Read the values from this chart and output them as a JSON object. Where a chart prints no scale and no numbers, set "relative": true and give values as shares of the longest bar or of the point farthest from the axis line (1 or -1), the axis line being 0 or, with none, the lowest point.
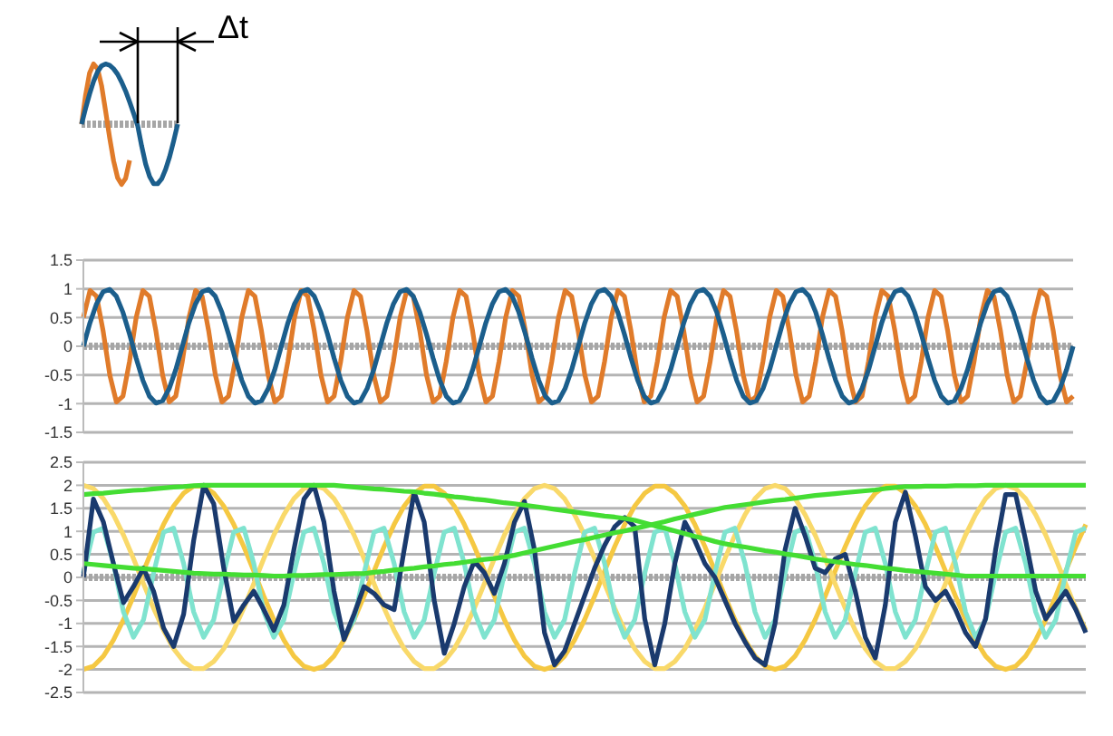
{
  "chart_data": [
    {
      "type": "line",
      "relative": true,
      "annotations": [
        "Δt"
      ],
      "ref_lines": [
        {
          "axis": "y",
          "value": 0,
          "color": "#a6a6a6",
          "line_style": "dotted"
        }
      ],
      "tick_labels": false,
      "marker": "none",
      "categories": [
        null,
        null,
        null,
        null,
        null,
        null,
        null,
        null,
        null,
        null,
        null,
        null,
        null,
        null,
        null,
        null,
        null,
        null,
        null,
        null,
        null,
        null,
        null,
        null,
        null
      ],
      "series": [
        {
          "color": "#e07b2a",
          "values": [
            0,
            0.48,
            0.85,
            1,
            0.92,
            0.64,
            0.22,
            -0.22,
            -0.61,
            -0.89,
            -1,
            -0.9,
            -0.6,
            null,
            null,
            null,
            null,
            null,
            null,
            null,
            null,
            null,
            null,
            null,
            null
          ]
        },
        {
          "color": "#1b5e8c",
          "values": [
            0,
            0.26,
            0.5,
            0.71,
            0.87,
            0.97,
            1,
            0.98,
            0.92,
            0.83,
            0.7,
            0.55,
            0.37,
            0.18,
            -0.02,
            -0.36,
            -0.66,
            -0.87,
            -0.99,
            -0.99,
            -0.91,
            -0.75,
            -0.54,
            -0.28,
            0
          ]
        }
      ]
    },
    {
      "type": "line",
      "grid": "y",
      "tick_labels": "y",
      "marker": "none",
      "ref_lines": [
        {
          "axis": "y",
          "value": 0,
          "color": "#a6a6a6",
          "line_style": "dotted"
        }
      ],
      "ylim": [
        -1.5,
        1.5
      ],
      "yticks": [
        -1.5,
        -1,
        -0.5,
        0,
        0.5,
        1,
        1.5
      ],
      "categories": [
        null,
        null,
        null,
        null,
        null,
        null,
        null,
        null,
        null,
        null,
        null,
        null,
        null,
        null,
        null,
        null,
        null,
        null,
        null,
        null,
        null,
        null,
        null,
        null,
        null,
        null,
        null,
        null,
        null,
        null,
        null,
        null,
        null,
        null,
        null,
        null,
        null,
        null,
        null,
        null,
        null,
        null,
        null,
        null,
        null,
        null,
        null,
        null,
        null,
        null,
        null,
        null,
        null,
        null,
        null,
        null,
        null,
        null,
        null,
        null,
        null,
        null,
        null,
        null,
        null,
        null,
        null,
        null,
        null,
        null,
        null,
        null,
        null,
        null,
        null,
        null,
        null,
        null,
        null,
        null,
        null,
        null,
        null,
        null,
        null,
        null,
        null,
        null,
        null,
        null,
        null,
        null,
        null,
        null,
        null,
        null,
        null,
        null,
        null,
        null,
        null,
        null,
        null,
        null,
        null,
        null,
        null,
        null,
        null,
        null,
        null,
        null,
        null,
        null,
        null,
        null,
        null,
        null,
        null,
        null,
        null,
        null,
        null,
        null,
        null,
        null,
        null,
        null,
        null,
        null,
        null,
        null,
        null,
        null,
        null,
        null,
        null,
        null,
        null,
        null,
        null,
        null,
        null,
        null,
        null,
        null,
        null,
        null,
        null,
        null,
        null
      ],
      "series": [
        {
          "color": "#e07b2a",
          "values": [
            0.5,
            0.97,
            0.87,
            0.26,
            -0.5,
            -0.97,
            -0.87,
            -0.26,
            0.5,
            0.97,
            0.87,
            0.26,
            -0.5,
            -0.97,
            -0.87,
            -0.26,
            0.5,
            0.97,
            0.87,
            0.26,
            -0.5,
            -0.97,
            -0.87,
            -0.26,
            0.5,
            0.97,
            0.87,
            0.26,
            -0.5,
            -0.97,
            -0.87,
            -0.26,
            0.5,
            0.97,
            0.87,
            0.26,
            -0.5,
            -0.97,
            -0.87,
            -0.26,
            0.5,
            0.97,
            0.87,
            0.26,
            -0.5,
            -0.97,
            -0.87,
            -0.26,
            0.5,
            0.97,
            0.87,
            0.26,
            -0.5,
            -0.97,
            -0.87,
            -0.26,
            0.5,
            0.97,
            0.87,
            0.26,
            -0.5,
            -0.97,
            -0.87,
            -0.26,
            0.5,
            0.97,
            0.87,
            0.26,
            -0.5,
            -0.97,
            -0.87,
            -0.26,
            0.5,
            0.97,
            0.87,
            0.26,
            -0.5,
            -0.97,
            -0.87,
            -0.26,
            0.5,
            0.97,
            0.87,
            0.26,
            -0.5,
            -0.97,
            -0.87,
            -0.26,
            0.5,
            0.97,
            0.87,
            0.26,
            -0.5,
            -0.97,
            -0.87,
            -0.26,
            0.5,
            0.97,
            0.87,
            0.26,
            -0.5,
            -0.97,
            -0.87,
            -0.26,
            0.5,
            0.97,
            0.87,
            0.26,
            -0.5,
            -0.97,
            -0.87,
            -0.26,
            0.5,
            0.97,
            0.87,
            0.26,
            -0.5,
            -0.97,
            -0.87,
            -0.26,
            0.5,
            0.97,
            0.87,
            0.26,
            -0.5,
            -0.97,
            -0.87,
            -0.26,
            0.5,
            0.97,
            0.87,
            0.26,
            -0.5,
            -0.97,
            -0.87,
            -0.26,
            0.5,
            0.97,
            0.87,
            0.26,
            -0.5,
            -0.97,
            -0.87,
            -0.26,
            0.5,
            0.97,
            0.87,
            0.26,
            -0.5,
            -0.97,
            -0.87
          ]
        },
        {
          "color": "#1b5e8c",
          "values": [
            0,
            0.41,
            0.74,
            0.95,
            0.99,
            0.87,
            0.59,
            0.21,
            -0.21,
            -0.59,
            -0.87,
            -0.99,
            -0.95,
            -0.74,
            -0.41,
            0,
            0.41,
            0.74,
            0.95,
            0.99,
            0.87,
            0.59,
            0.21,
            -0.21,
            -0.59,
            -0.87,
            -0.99,
            -0.95,
            -0.74,
            -0.41,
            0,
            0.41,
            0.74,
            0.95,
            0.99,
            0.87,
            0.59,
            0.21,
            -0.21,
            -0.59,
            -0.87,
            -0.99,
            -0.95,
            -0.74,
            -0.41,
            0,
            0.41,
            0.74,
            0.95,
            0.99,
            0.87,
            0.59,
            0.21,
            -0.21,
            -0.59,
            -0.87,
            -0.99,
            -0.95,
            -0.74,
            -0.41,
            0,
            0.41,
            0.74,
            0.95,
            0.99,
            0.87,
            0.59,
            0.21,
            -0.21,
            -0.59,
            -0.87,
            -0.99,
            -0.95,
            -0.74,
            -0.41,
            0,
            0.41,
            0.74,
            0.95,
            0.99,
            0.87,
            0.59,
            0.21,
            -0.21,
            -0.59,
            -0.87,
            -0.99,
            -0.95,
            -0.74,
            -0.41,
            0,
            0.41,
            0.74,
            0.95,
            0.99,
            0.87,
            0.59,
            0.21,
            -0.21,
            -0.59,
            -0.87,
            -0.99,
            -0.95,
            -0.74,
            -0.41,
            0,
            0.41,
            0.74,
            0.95,
            0.99,
            0.87,
            0.59,
            0.21,
            -0.21,
            -0.59,
            -0.87,
            -0.99,
            -0.95,
            -0.74,
            -0.41,
            0,
            0.41,
            0.74,
            0.95,
            0.99,
            0.87,
            0.59,
            0.21,
            -0.21,
            -0.59,
            -0.87,
            -0.99,
            -0.95,
            -0.74,
            -0.41,
            0,
            0.41,
            0.74,
            0.95,
            0.99,
            0.87,
            0.59,
            0.21,
            -0.21,
            -0.59,
            -0.87,
            -0.99,
            -0.95,
            -0.74,
            -0.41,
            0
          ]
        }
      ]
    },
    {
      "type": "line",
      "grid": "y",
      "tick_labels": "y",
      "marker": "none",
      "ref_lines": [
        {
          "axis": "y",
          "value": 0,
          "color": "#a6a6a6",
          "line_style": "dotted"
        }
      ],
      "ylim": [
        -2.5,
        2.5
      ],
      "yticks": [
        -2.5,
        -2,
        -1.5,
        -1,
        -0.5,
        0,
        0.5,
        1,
        1.5,
        2,
        2.5
      ],
      "categories": [
        null,
        null,
        null,
        null,
        null,
        null,
        null,
        null,
        null,
        null,
        null,
        null,
        null,
        null,
        null,
        null,
        null,
        null,
        null,
        null,
        null,
        null,
        null,
        null,
        null,
        null,
        null,
        null,
        null,
        null,
        null,
        null,
        null,
        null,
        null,
        null,
        null,
        null,
        null,
        null,
        null,
        null,
        null,
        null,
        null,
        null,
        null,
        null,
        null,
        null,
        null,
        null,
        null,
        null,
        null,
        null,
        null,
        null,
        null,
        null,
        null,
        null,
        null,
        null,
        null,
        null,
        null,
        null,
        null,
        null,
        null,
        null,
        null,
        null,
        null,
        null,
        null,
        null,
        null,
        null,
        null,
        null,
        null,
        null,
        null,
        null,
        null,
        null,
        null,
        null,
        null,
        null,
        null,
        null,
        null,
        null,
        null,
        null,
        null,
        null,
        null
      ],
      "series": [
        {
          "color": "#f5c842",
          "values": [
            -2,
            -1.93,
            -1.71,
            -1.36,
            -0.92,
            -0.41,
            0.14,
            0.67,
            1.15,
            1.55,
            1.83,
            1.98,
            1.98,
            1.83,
            1.55,
            1.15,
            0.67,
            0.14,
            -0.41,
            -0.92,
            -1.36,
            -1.71,
            -1.93,
            -2,
            -1.93,
            -1.71,
            -1.36,
            -0.92,
            -0.41,
            0.14,
            0.67,
            1.15,
            1.55,
            1.83,
            1.98,
            1.98,
            1.83,
            1.55,
            1.15,
            0.67,
            0.14,
            -0.41,
            -0.92,
            -1.36,
            -1.71,
            -1.93,
            -2,
            -1.93,
            -1.71,
            -1.36,
            -0.92,
            -0.41,
            0.14,
            0.67,
            1.15,
            1.55,
            1.83,
            1.98,
            1.98,
            1.83,
            1.55,
            1.15,
            0.67,
            0.14,
            -0.41,
            -0.92,
            -1.36,
            -1.71,
            -1.93,
            -2,
            -1.93,
            -1.71,
            -1.36,
            -0.92,
            -0.41,
            0.14,
            0.67,
            1.15,
            1.55,
            1.83,
            1.98,
            1.98,
            1.83,
            1.55,
            1.15,
            0.67,
            0.14,
            -0.41,
            -0.92,
            -1.36,
            -1.71,
            -1.93,
            -2,
            -1.93,
            -1.71,
            -1.36,
            -0.92,
            -0.41,
            0.14,
            0.67,
            1.15
          ]
        },
        {
          "color": "#f9d96a",
          "values": [
            2,
            1.93,
            1.71,
            1.36,
            0.92,
            0.41,
            -0.14,
            -0.67,
            -1.15,
            -1.55,
            -1.83,
            -1.98,
            -1.98,
            -1.83,
            -1.55,
            -1.15,
            -0.67,
            -0.14,
            0.41,
            0.92,
            1.36,
            1.71,
            1.93,
            2,
            1.93,
            1.71,
            1.36,
            0.92,
            0.41,
            -0.14,
            -0.67,
            -1.15,
            -1.55,
            -1.83,
            -1.98,
            -1.98,
            -1.83,
            -1.55,
            -1.15,
            -0.67,
            -0.14,
            0.41,
            0.92,
            1.36,
            1.71,
            1.93,
            2,
            1.93,
            1.71,
            1.36,
            0.92,
            0.41,
            -0.14,
            -0.67,
            -1.15,
            -1.55,
            -1.83,
            -1.98,
            -1.98,
            -1.83,
            -1.55,
            -1.15,
            -0.67,
            -0.14,
            0.41,
            0.92,
            1.36,
            1.71,
            1.93,
            2,
            1.93,
            1.71,
            1.36,
            0.92,
            0.41,
            -0.14,
            -0.67,
            -1.15,
            -1.55,
            -1.83,
            -1.98,
            -1.98,
            -1.83,
            -1.55,
            -1.15,
            -0.67,
            -0.14,
            0.41,
            0.92,
            1.36,
            1.71,
            1.93,
            2,
            1.93,
            1.71,
            1.36,
            0.92,
            0.41,
            -0.14,
            -0.67,
            -1.15
          ]
        },
        {
          "color": "#7fe3cf",
          "values": [
            0.09,
            0.98,
            1.07,
            0.3,
            -0.75,
            -1.3,
            -0.92,
            0.09,
            0.98,
            1.07,
            0.3,
            -0.75,
            -1.3,
            -0.92,
            0.09,
            0.98,
            1.07,
            0.3,
            -0.75,
            -1.3,
            -0.92,
            0.09,
            0.98,
            1.07,
            0.3,
            -0.75,
            -1.3,
            -0.92,
            0.09,
            0.98,
            1.07,
            0.3,
            -0.75,
            -1.3,
            -0.92,
            0.09,
            0.98,
            1.07,
            0.3,
            -0.75,
            -1.3,
            -0.92,
            0.09,
            0.98,
            1.07,
            0.3,
            -0.75,
            -1.3,
            -0.92,
            0.09,
            0.98,
            1.07,
            0.3,
            -0.75,
            -1.3,
            -0.92,
            0.09,
            0.98,
            1.07,
            0.3,
            -0.75,
            -1.3,
            -0.92,
            0.09,
            0.98,
            1.07,
            0.3,
            -0.75,
            -1.3,
            -0.92,
            0.09,
            0.98,
            1.07,
            0.3,
            -0.75,
            -1.3,
            -0.92,
            0.09,
            0.98,
            1.07,
            0.3,
            -0.75,
            -1.3,
            -0.92,
            0.09,
            0.98,
            1.07,
            0.3,
            -0.75,
            -1.3,
            -0.92,
            0.09,
            0.98,
            1.07,
            0.3,
            -0.75,
            -1.3,
            -0.92,
            0.09,
            0.98,
            1.07
          ]
        },
        {
          "color": "#1a3a6e",
          "values": [
            0,
            1.7,
            1.2,
            0.3,
            -0.55,
            -0.2,
            0.2,
            -0.3,
            -1.1,
            -1.5,
            -0.8,
            0.8,
            2,
            1.6,
            0.2,
            -0.95,
            -0.6,
            -0.3,
            -0.7,
            -1.15,
            -0.6,
            0.6,
            1.7,
            2,
            1.2,
            -0.3,
            -1.35,
            -0.8,
            -0.2,
            -0.35,
            -0.6,
            -0.7,
            0.6,
            1.85,
            1.2,
            -0.5,
            -1.65,
            -1,
            -0.2,
            0.35,
            0.1,
            -0.35,
            0.3,
            1.2,
            1.65,
            0.6,
            -1.2,
            -1.9,
            -1.6,
            -1,
            -0.4,
            0.2,
            0.7,
            1.1,
            1.3,
            1.1,
            -0.9,
            -1.9,
            -1,
            0.3,
            1.2,
            0.8,
            0.3,
            0,
            -0.5,
            -1,
            -1.4,
            -1.75,
            -1.9,
            -1,
            0.6,
            1.5,
            0.9,
            0.2,
            0.1,
            0.4,
            0.5,
            -0.3,
            -1.3,
            -1.75,
            -0.6,
            1.2,
            1.85,
            0.9,
            -0.2,
            -0.5,
            -0.3,
            -0.7,
            -1.2,
            -1.5,
            -0.9,
            0.6,
            1.8,
            1.8,
            0.8,
            -0.3,
            -0.9,
            -0.6,
            -0.3,
            -0.7,
            -1.2
          ]
        },
        {
          "color": "#44dd33",
          "values": [
            1.8,
            1.82,
            1.83,
            1.85,
            1.87,
            1.89,
            1.9,
            1.92,
            1.94,
            1.96,
            1.97,
            1.99,
            2,
            2,
            2,
            2,
            2,
            2,
            2,
            2,
            2,
            2,
            2,
            2,
            2,
            2,
            1.98,
            1.96,
            1.94,
            1.92,
            1.91,
            1.89,
            1.87,
            1.86,
            1.83,
            1.81,
            1.78,
            1.75,
            1.73,
            1.7,
            1.68,
            1.65,
            1.62,
            1.6,
            1.57,
            1.54,
            1.51,
            1.48,
            1.45,
            1.42,
            1.39,
            1.36,
            1.33,
            1.31,
            1.28,
            1.24,
            1.18,
            1.12,
            1.07,
            1.01,
            0.95,
            0.89,
            0.84,
            0.78,
            0.73,
            0.69,
            0.66,
            0.62,
            0.58,
            0.55,
            0.51,
            0.48,
            0.44,
            0.4,
            0.37,
            0.34,
            0.31,
            0.28,
            0.26,
            0.23,
            0.2,
            0.18,
            0.15,
            0.13,
            0.11,
            0.09,
            0.07,
            0.05,
            0.03,
            0.03,
            0.03,
            0.03,
            0.03,
            0.03,
            0.03,
            0.03,
            0.03,
            0.03,
            0.03,
            0.03,
            0.03
          ]
        },
        {
          "color": "#44dd33",
          "values": [
            0.3,
            0.28,
            0.26,
            0.24,
            0.22,
            0.2,
            0.19,
            0.17,
            0.15,
            0.13,
            0.11,
            0.09,
            0.08,
            0.07,
            0.07,
            0.06,
            0.05,
            0.05,
            0.04,
            0.03,
            0.03,
            0.04,
            0.04,
            0.05,
            0.06,
            0.06,
            0.07,
            0.08,
            0.08,
            0.11,
            0.13,
            0.16,
            0.18,
            0.2,
            0.23,
            0.25,
            0.28,
            0.3,
            0.33,
            0.36,
            0.39,
            0.41,
            0.44,
            0.48,
            0.53,
            0.58,
            0.63,
            0.68,
            0.73,
            0.78,
            0.82,
            0.87,
            0.92,
            0.97,
            1.01,
            1.06,
            1.11,
            1.16,
            1.21,
            1.27,
            1.32,
            1.37,
            1.42,
            1.47,
            1.52,
            1.55,
            1.58,
            1.61,
            1.64,
            1.67,
            1.69,
            1.72,
            1.75,
            1.78,
            1.8,
            1.82,
            1.84,
            1.86,
            1.88,
            1.9,
            1.93,
            1.95,
            1.97,
            1.97,
            1.98,
            1.98,
            1.98,
            1.99,
            1.99,
            1.99,
            2,
            2,
            2,
            2,
            2,
            2,
            2,
            2,
            2,
            2,
            2
          ]
        }
      ]
    }
  ]
}
